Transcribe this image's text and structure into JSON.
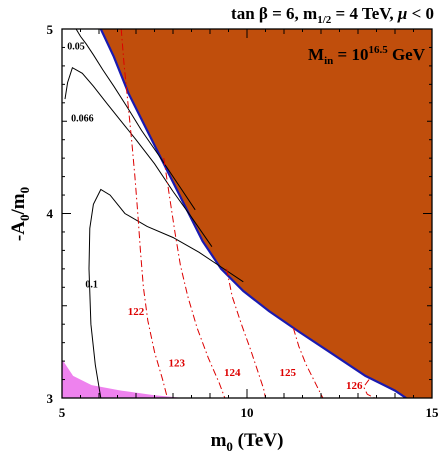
{
  "chart_data": {
    "type": "line",
    "title": "tan β = 6, m1/2 = 4 TeV, μ < 0",
    "title_parts": {
      "tanb": "tan β",
      "eq1": " = 6, m",
      "m_sub": "1/2",
      "eq2": " = 4 TeV, ",
      "mu": "μ",
      "eq3": " < 0"
    },
    "annotation": {
      "prefix": "M",
      "sub": "in",
      "eq": " = 10",
      "sup": "16.5",
      "unit": " GeV"
    },
    "xlabel": {
      "main": "m",
      "sub": "0",
      "rest": " (TeV)"
    },
    "ylabel": {
      "main": "-A",
      "sub1": "0",
      "slash": "/m",
      "sub2": "0"
    },
    "xlim": [
      5,
      15
    ],
    "ylim": [
      3,
      5
    ],
    "xticks": [
      "5",
      "10",
      "15"
    ],
    "yticks": [
      "3",
      "4",
      "5"
    ],
    "colors": {
      "excluded": "#c04e0c",
      "boundary": "#1a1ab0",
      "pink": "#ee82ee",
      "higgs": "#dd0000",
      "contour": "#000000"
    },
    "regions": {
      "excluded": [
        [
          6.05,
          5
        ],
        [
          6.4,
          4.85
        ],
        [
          6.8,
          4.65
        ],
        [
          7.3,
          4.45
        ],
        [
          7.8,
          4.25
        ],
        [
          8.3,
          4.05
        ],
        [
          8.8,
          3.85
        ],
        [
          9.3,
          3.7
        ],
        [
          9.9,
          3.58
        ],
        [
          10.6,
          3.47
        ],
        [
          11.4,
          3.36
        ],
        [
          12.3,
          3.24
        ],
        [
          13.2,
          3.12
        ],
        [
          14.0,
          3.04
        ],
        [
          14.3,
          3.0
        ],
        [
          15,
          3.0
        ],
        [
          15,
          5
        ]
      ],
      "pink": [
        [
          5,
          3.21
        ],
        [
          5.3,
          3.12
        ],
        [
          5.8,
          3.07
        ],
        [
          6.6,
          3.04
        ],
        [
          7.5,
          3.015
        ],
        [
          8.3,
          3.0
        ],
        [
          5,
          3.0
        ]
      ]
    },
    "boundary": [
      [
        6.05,
        5
      ],
      [
        6.4,
        4.85
      ],
      [
        6.8,
        4.65
      ],
      [
        7.3,
        4.45
      ],
      [
        7.8,
        4.25
      ],
      [
        8.3,
        4.05
      ],
      [
        8.8,
        3.85
      ],
      [
        9.3,
        3.7
      ],
      [
        9.9,
        3.58
      ],
      [
        10.6,
        3.47
      ],
      [
        11.4,
        3.36
      ],
      [
        12.3,
        3.24
      ],
      [
        13.2,
        3.12
      ],
      [
        14.0,
        3.04
      ],
      [
        14.3,
        3.0
      ]
    ],
    "contours": [
      {
        "label": "0.05",
        "points": [
          [
            5.38,
            5
          ],
          [
            5.5,
            4.96
          ],
          [
            5.65,
            4.92
          ],
          [
            5.85,
            4.86
          ],
          [
            6.1,
            4.78
          ],
          [
            6.4,
            4.69
          ],
          [
            6.75,
            4.58
          ],
          [
            7.15,
            4.45
          ],
          [
            7.6,
            4.32
          ],
          [
            8.1,
            4.17
          ],
          [
            8.6,
            4.02
          ]
        ]
      },
      {
        "label": "0.066",
        "points": [
          [
            5.08,
            4.62
          ],
          [
            5.15,
            4.71
          ],
          [
            5.28,
            4.79
          ],
          [
            5.55,
            4.76
          ],
          [
            5.85,
            4.69
          ],
          [
            6.2,
            4.6
          ],
          [
            6.6,
            4.5
          ],
          [
            7.0,
            4.4
          ],
          [
            7.5,
            4.27
          ],
          [
            8.0,
            4.12
          ],
          [
            8.5,
            3.98
          ],
          [
            9.05,
            3.82
          ]
        ]
      },
      {
        "label": "0.1",
        "points": [
          [
            6.05,
            3.0
          ],
          [
            5.9,
            3.18
          ],
          [
            5.78,
            3.4
          ],
          [
            5.73,
            3.7
          ],
          [
            5.75,
            3.92
          ],
          [
            5.85,
            4.05
          ],
          [
            6.05,
            4.13
          ],
          [
            6.3,
            4.1
          ],
          [
            6.7,
            4.0
          ],
          [
            7.3,
            3.93
          ],
          [
            8.0,
            3.87
          ],
          [
            8.7,
            3.79
          ],
          [
            9.3,
            3.71
          ],
          [
            9.9,
            3.63
          ]
        ]
      }
    ],
    "higgs_contours": [
      {
        "label": "122",
        "points": [
          [
            6.6,
            5
          ],
          [
            6.68,
            4.8
          ],
          [
            6.78,
            4.6
          ],
          [
            6.88,
            4.4
          ],
          [
            6.97,
            4.2
          ],
          [
            7.05,
            4.0
          ],
          [
            7.12,
            3.8
          ],
          [
            7.2,
            3.6
          ],
          [
            7.32,
            3.42
          ],
          [
            7.5,
            3.25
          ],
          [
            7.72,
            3.1
          ],
          [
            7.85,
            3.0
          ]
        ]
      },
      {
        "label": "123",
        "points": [
          [
            7.75,
            4.3
          ],
          [
            7.9,
            4.1
          ],
          [
            8.05,
            3.9
          ],
          [
            8.2,
            3.72
          ],
          [
            8.4,
            3.55
          ],
          [
            8.65,
            3.38
          ],
          [
            8.95,
            3.22
          ],
          [
            9.25,
            3.08
          ],
          [
            9.4,
            3.0
          ]
        ]
      },
      {
        "label": "124",
        "points": [
          [
            9.45,
            3.7
          ],
          [
            9.6,
            3.55
          ],
          [
            9.85,
            3.4
          ],
          [
            10.1,
            3.26
          ],
          [
            10.3,
            3.14
          ],
          [
            10.45,
            3.05
          ],
          [
            10.5,
            3.0
          ]
        ]
      },
      {
        "label": "125",
        "points": [
          [
            11.25,
            3.38
          ],
          [
            11.4,
            3.28
          ],
          [
            11.6,
            3.18
          ],
          [
            11.8,
            3.1
          ],
          [
            11.95,
            3.04
          ],
          [
            12.05,
            3.0
          ]
        ]
      },
      {
        "label": "126",
        "points": [
          [
            13.3,
            3.1
          ],
          [
            13.15,
            3.06
          ],
          [
            13.25,
            3.02
          ],
          [
            13.45,
            3.0
          ]
        ]
      }
    ]
  }
}
